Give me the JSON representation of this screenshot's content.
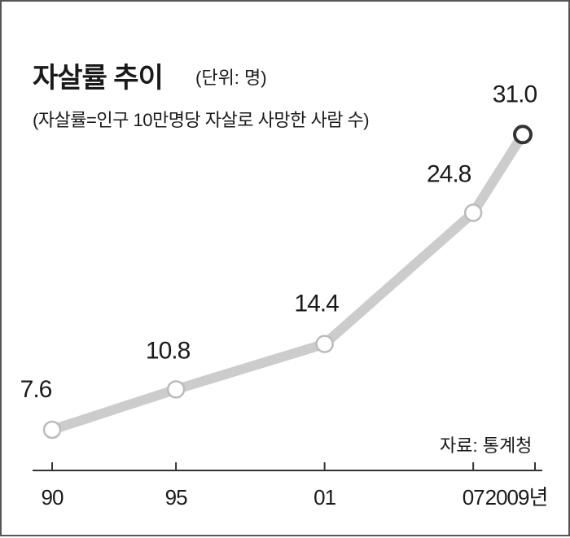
{
  "chart_data": {
    "type": "line",
    "title": "자살률 추이",
    "unit_note": "(단위: 명)",
    "subtitle": "(자살률=인구 10만명당 자살로 사망한 사람 수)",
    "source": "자료: 통계청",
    "categories": [
      "90",
      "95",
      "01",
      "07",
      "2009년"
    ],
    "x": [
      1990,
      1995,
      2001,
      2007,
      2009
    ],
    "values": [
      7.6,
      10.8,
      14.4,
      24.8,
      31.0
    ],
    "value_labels": [
      "7.6",
      "10.8",
      "14.4",
      "24.8",
      "31.0"
    ],
    "ylim": [
      0,
      40
    ],
    "grid": false,
    "colors": {
      "line": "#cccccc",
      "marker_fill": "#ffffff",
      "marker_edge": "#bbbbbb",
      "last_marker_edge": "#333333",
      "axis": "#333333"
    }
  }
}
